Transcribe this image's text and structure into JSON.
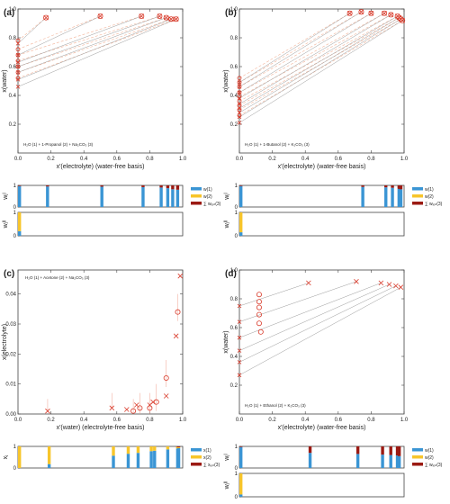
{
  "colors": {
    "w1": "#3a95d4",
    "w2": "#f7c52b",
    "w3": "#9b1a13",
    "marker": "#d93b2b",
    "tie": "#9a9a9a",
    "tiesim": "#f2b49a"
  },
  "chart_data": [
    {
      "id": "a",
      "panel_label": "(a)",
      "type": "scatter",
      "system_label": "H₂O (1) + 1-Propanol (2) + Na₂CO₃ (3)",
      "xlabel": "x'(electrolyte)  (water-free basis)",
      "ylabel": "x(water)",
      "xlim": [
        0,
        1
      ],
      "ylim": [
        0,
        1
      ],
      "xticks": [
        "0.0",
        "0.2",
        "0.4",
        "0.6",
        "0.8",
        "1.0"
      ],
      "yticks": [
        "0.2",
        "0.4",
        "0.6",
        "0.8",
        "1.0"
      ],
      "tie_lines": [
        {
          "exp_left": [
            0,
            0.46
          ],
          "exp_right": [
            0.96,
            0.93
          ],
          "sim_left": [
            0,
            0.52
          ],
          "sim_right": [
            0.96,
            0.93
          ]
        },
        {
          "exp_left": [
            0,
            0.51
          ],
          "exp_right": [
            0.93,
            0.93
          ],
          "sim_left": [
            0,
            0.56
          ],
          "sim_right": [
            0.93,
            0.93
          ]
        },
        {
          "exp_left": [
            0,
            0.56
          ],
          "exp_right": [
            0.9,
            0.94
          ],
          "sim_left": [
            0,
            0.6
          ],
          "sim_right": [
            0.9,
            0.94
          ]
        },
        {
          "exp_left": [
            0,
            0.6
          ],
          "exp_right": [
            0.86,
            0.95
          ],
          "sim_left": [
            0,
            0.64
          ],
          "sim_right": [
            0.86,
            0.95
          ]
        },
        {
          "exp_left": [
            0,
            0.63
          ],
          "exp_right": [
            0.75,
            0.95
          ],
          "sim_left": [
            0,
            0.68
          ],
          "sim_right": [
            0.75,
            0.95
          ]
        },
        {
          "exp_left": [
            0,
            0.68
          ],
          "exp_right": [
            0.5,
            0.95
          ],
          "sim_left": [
            0,
            0.72
          ],
          "sim_right": [
            0.5,
            0.95
          ]
        },
        {
          "exp_left": [
            0,
            0.76
          ],
          "exp_right": [
            0.17,
            0.94
          ],
          "sim_left": [
            0,
            0.78
          ],
          "sim_right": [
            0.17,
            0.94
          ]
        }
      ],
      "bars_w": {
        "ylabel": "wⱼᴵ",
        "positions": [
          0.0,
          0.17,
          0.5,
          0.75,
          0.86,
          0.9,
          0.93,
          0.96
        ],
        "w1": [
          0.97,
          0.95,
          0.94,
          0.92,
          0.9,
          0.87,
          0.82,
          0.8
        ],
        "w2": [
          0.0,
          0.0,
          0.0,
          0.0,
          0.0,
          0.0,
          0.0,
          0.0
        ],
        "w3": [
          0.03,
          0.05,
          0.06,
          0.08,
          0.1,
          0.13,
          0.18,
          0.2
        ]
      },
      "bars_w_lower": {
        "ylabel": "wⱼᴵᴵ",
        "positions": [
          0.0
        ],
        "w1": [
          0.2
        ],
        "w2": [
          0.8
        ],
        "w3": [
          0.0
        ]
      }
    },
    {
      "id": "b",
      "panel_label": "(b)",
      "type": "scatter",
      "system_label": "H₂O (1) + 1-Butanol (2) + K₂CO₃ (3)",
      "xlabel": "x'(electrolyte)  (water-free basis)",
      "ylabel": "x(water)",
      "xlim": [
        0,
        1
      ],
      "ylim": [
        0,
        1
      ],
      "xticks": [
        "0.0",
        "0.2",
        "0.4",
        "0.6",
        "0.8",
        "1.0"
      ],
      "yticks": [
        "0.2",
        "0.4",
        "0.6",
        "0.8",
        "1.0"
      ],
      "tie_lines": [
        {
          "exp_left": [
            0,
            0.21
          ],
          "exp_right": [
            0.99,
            0.92
          ],
          "sim_left": [
            0,
            0.26
          ],
          "sim_right": [
            0.99,
            0.92
          ]
        },
        {
          "exp_left": [
            0,
            0.25
          ],
          "exp_right": [
            0.98,
            0.93
          ],
          "sim_left": [
            0,
            0.3
          ],
          "sim_right": [
            0.98,
            0.93
          ]
        },
        {
          "exp_left": [
            0,
            0.28
          ],
          "exp_right": [
            0.97,
            0.94
          ],
          "sim_left": [
            0,
            0.33
          ],
          "sim_right": [
            0.97,
            0.94
          ]
        },
        {
          "exp_left": [
            0,
            0.31
          ],
          "exp_right": [
            0.96,
            0.95
          ],
          "sim_left": [
            0,
            0.36
          ],
          "sim_right": [
            0.96,
            0.95
          ]
        },
        {
          "exp_left": [
            0,
            0.34
          ],
          "exp_right": [
            0.92,
            0.96
          ],
          "sim_left": [
            0,
            0.39
          ],
          "sim_right": [
            0.92,
            0.96
          ]
        },
        {
          "exp_left": [
            0,
            0.38
          ],
          "exp_right": [
            0.88,
            0.97
          ],
          "sim_left": [
            0,
            0.42
          ],
          "sim_right": [
            0.88,
            0.97
          ]
        },
        {
          "exp_left": [
            0,
            0.42
          ],
          "exp_right": [
            0.8,
            0.97
          ],
          "sim_left": [
            0,
            0.46
          ],
          "sim_right": [
            0.8,
            0.97
          ]
        },
        {
          "exp_left": [
            0,
            0.46
          ],
          "exp_right": [
            0.74,
            0.98
          ],
          "sim_left": [
            0,
            0.49
          ],
          "sim_right": [
            0.74,
            0.98
          ]
        },
        {
          "exp_left": [
            0,
            0.49
          ],
          "exp_right": [
            0.67,
            0.97
          ],
          "sim_left": [
            0,
            0.52
          ],
          "sim_right": [
            0.67,
            0.97
          ]
        }
      ],
      "bars_w": {
        "ylabel": "wⱼᴵ",
        "positions": [
          0.0,
          0.74,
          0.88,
          0.92,
          0.96,
          0.98,
          0.99
        ],
        "w1": [
          0.97,
          0.93,
          0.91,
          0.89,
          0.86,
          0.84,
          0.82
        ],
        "w2": [
          0.0,
          0.0,
          0.0,
          0.0,
          0.0,
          0.0,
          0.0
        ],
        "w3": [
          0.03,
          0.07,
          0.09,
          0.11,
          0.14,
          0.16,
          0.18
        ]
      },
      "bars_w_lower": {
        "ylabel": "wⱼᴵᴵ",
        "positions": [
          0.0
        ],
        "w1": [
          0.15
        ],
        "w2": [
          0.85
        ],
        "w3": [
          0.0
        ]
      }
    },
    {
      "id": "c",
      "panel_label": "(c)",
      "type": "scatter",
      "system_label": "H₂O (1) + Acetone (2) + Na₂CO₃ (3)",
      "xlabel": "x'(water)  (electrolyte-free basis)",
      "ylabel": "x(electrolyte)",
      "xlim": [
        0,
        1
      ],
      "ylim": [
        0,
        0.048
      ],
      "xticks": [
        "0.0",
        "0.2",
        "0.4",
        "0.6",
        "0.8",
        "1.0"
      ],
      "yticks": [
        "0.00",
        "0.01",
        "0.02",
        "0.03",
        "0.04"
      ],
      "exp_points": [
        {
          "x": 0.18,
          "y": 0.001
        },
        {
          "x": 0.57,
          "y": 0.002
        },
        {
          "x": 0.66,
          "y": 0.0015
        },
        {
          "x": 0.72,
          "y": 0.003
        },
        {
          "x": 0.8,
          "y": 0.003
        },
        {
          "x": 0.82,
          "y": 0.004
        },
        {
          "x": 0.9,
          "y": 0.006
        },
        {
          "x": 0.96,
          "y": 0.026
        },
        {
          "x": 0.985,
          "y": 0.046
        }
      ],
      "sim_points": [
        {
          "x": 0.7,
          "y": 0.001,
          "err": 0.004
        },
        {
          "x": 0.74,
          "y": 0.002,
          "err": 0.005
        },
        {
          "x": 0.8,
          "y": 0.002,
          "err": 0.005
        },
        {
          "x": 0.84,
          "y": 0.004,
          "err": 0.006
        },
        {
          "x": 0.9,
          "y": 0.012,
          "err": 0.006
        },
        {
          "x": 0.97,
          "y": 0.034,
          "err": 0.006
        }
      ],
      "error_bars": [
        {
          "x": 0.18,
          "y": 0.001,
          "err": 0.004
        },
        {
          "x": 0.57,
          "y": 0.002,
          "err": 0.005
        }
      ],
      "bars_x": {
        "ylabel": "xⱼ",
        "positions": [
          0.0,
          0.18,
          0.57,
          0.66,
          0.72,
          0.8,
          0.82,
          0.9,
          0.96,
          0.985
        ],
        "w1": [
          0.0,
          0.18,
          0.57,
          0.66,
          0.7,
          0.78,
          0.8,
          0.86,
          0.9,
          0.92
        ],
        "w2": [
          1.0,
          0.82,
          0.43,
          0.34,
          0.3,
          0.22,
          0.2,
          0.14,
          0.08,
          0.04
        ],
        "w3": [
          0.0,
          0.0,
          0.0,
          0.0,
          0.0,
          0.0,
          0.0,
          0.0,
          0.02,
          0.04
        ]
      }
    },
    {
      "id": "d",
      "panel_label": "(d)",
      "type": "scatter",
      "system_label": "H₂O (1) + Ethanol (2) + K₂CO₃ (3)",
      "xlabel": "x'(electrolyte)  (water-free basis)",
      "ylabel": "x(water)",
      "xlim": [
        0,
        1
      ],
      "ylim": [
        0,
        1
      ],
      "xticks": [
        "0.0",
        "0.2",
        "0.4",
        "0.6",
        "0.8",
        "1.0"
      ],
      "yticks": [
        "0.2",
        "0.4",
        "0.6",
        "0.8",
        "1.0"
      ],
      "tie_lines": [
        {
          "exp_left": [
            0,
            0.27
          ],
          "exp_right": [
            0.98,
            0.88
          ]
        },
        {
          "exp_left": [
            0,
            0.36
          ],
          "exp_right": [
            0.95,
            0.89
          ]
        },
        {
          "exp_left": [
            0,
            0.44
          ],
          "exp_right": [
            0.91,
            0.9
          ]
        },
        {
          "exp_left": [
            0,
            0.53
          ],
          "exp_right": [
            0.86,
            0.91
          ]
        },
        {
          "exp_left": [
            0,
            0.64
          ],
          "exp_right": [
            0.71,
            0.92
          ]
        },
        {
          "exp_left": [
            0,
            0.75
          ],
          "exp_right": [
            0.42,
            0.91
          ]
        }
      ],
      "sim_points": [
        {
          "x": 0.13,
          "y": 0.57
        },
        {
          "x": 0.12,
          "y": 0.63
        },
        {
          "x": 0.12,
          "y": 0.69
        },
        {
          "x": 0.12,
          "y": 0.74
        },
        {
          "x": 0.12,
          "y": 0.78
        },
        {
          "x": 0.12,
          "y": 0.83
        }
      ],
      "bars_w": {
        "ylabel": "wⱼᴵ",
        "positions": [
          0.0,
          0.42,
          0.71,
          0.86,
          0.91,
          0.95,
          0.98
        ],
        "w1": [
          0.97,
          0.7,
          0.65,
          0.62,
          0.6,
          0.58,
          0.55
        ],
        "w2": [
          0.0,
          0.0,
          0.0,
          0.0,
          0.0,
          0.0,
          0.0
        ],
        "w3": [
          0.03,
          0.3,
          0.35,
          0.38,
          0.4,
          0.42,
          0.45
        ]
      },
      "bars_w_lower": {
        "ylabel": "wⱼᴵᴵ",
        "positions": [
          0.0
        ],
        "w1": [
          0.1
        ],
        "w2": [
          0.9
        ],
        "w3": [
          0.0
        ]
      }
    }
  ],
  "legend_w": [
    "w(1)",
    "w(2)",
    "∑ wᵢₒₙ(3)"
  ],
  "legend_x": [
    "x(1)",
    "x(2)",
    "∑ xᵢₒₙ(3)"
  ],
  "bar_ticks": [
    "0",
    "1"
  ]
}
